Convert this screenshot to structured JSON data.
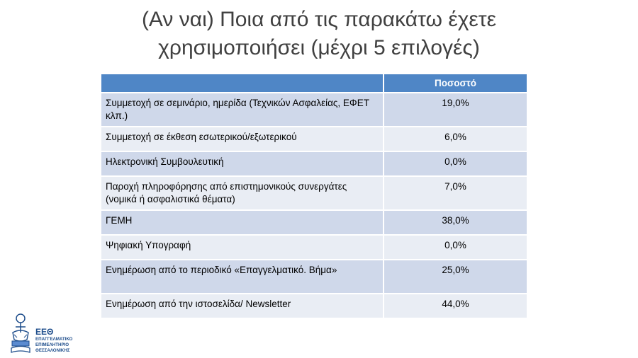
{
  "title": {
    "line1": "(Αν ναι) Ποια από τις παρακάτω έχετε",
    "line2": "χρησιμοποιήσει (μέχρι 5 επιλογές)"
  },
  "table": {
    "header": [
      "",
      "Ποσοστό"
    ],
    "rows": [
      {
        "label": "Συμμετοχή σε σεμινάριο, ημερίδα (Τεχνικών Ασφαλείας, ΕΦΕΤ κλπ.)",
        "value": "19,0%"
      },
      {
        "label": "Συμμετοχή σε έκθεση εσωτερικού/εξωτερικού",
        "value": "6,0%"
      },
      {
        "label": "Ηλεκτρονική Συμβουλευτική",
        "value": "0,0%"
      },
      {
        "label": "Παροχή πληροφόρησης από επιστημονικούς συνεργάτες (νομικά ή ασφαλιστικά θέματα)",
        "value": "7,0%"
      },
      {
        "label": "ΓΕΜΗ",
        "value": "38,0%"
      },
      {
        "label": "Ψηφιακή Υπογραφή",
        "value": "0,0%"
      },
      {
        "label": "Ενημέρωση από το περιοδικό «Επαγγελματικό. Βήμα»",
        "value": "25,0%"
      },
      {
        "label": "Ενημέρωση από την ιστοσελίδα/ Newsletter",
        "value": "44,0%"
      }
    ]
  },
  "logo": {
    "abbr": "ΕΕΘ",
    "line1": "ΕΠΑΓΓΕΛΜΑΤΙΚΟ",
    "line2": "ΕΠΙΜΕΛΗΤΗΡΙΟ",
    "line3": "ΘΕΣΣΑΛΟΝΙΚΗΣ"
  },
  "colors": {
    "header": "#4f86c6",
    "row_odd": "#cfd8ea",
    "row_even": "#e9edf4",
    "brand": "#1f4e8c"
  }
}
